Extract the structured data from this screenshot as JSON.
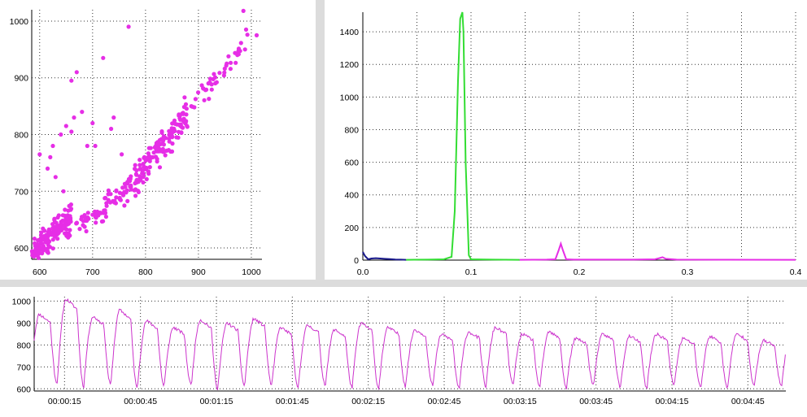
{
  "chart_data": [
    {
      "type": "scatter",
      "color": "#e62ee6",
      "xlim": [
        585,
        1020
      ],
      "ylim": [
        580,
        1020
      ],
      "xticks": [
        600,
        700,
        800,
        900,
        1000
      ],
      "yticks": [
        600,
        700,
        800,
        900,
        1000
      ],
      "grid": true,
      "clusters": [
        {
          "x_from": 585,
          "x_to": 660,
          "y_center_start": 590,
          "slope": 0.9,
          "spread": 22,
          "count": 150
        },
        {
          "x_from": 650,
          "x_to": 760,
          "y_center_start": 620,
          "slope": 0.75,
          "spread": 20,
          "count": 70
        },
        {
          "x_from": 760,
          "x_to": 880,
          "y_center_start": 700,
          "slope": 1.15,
          "spread": 28,
          "count": 160
        },
        {
          "x_from": 870,
          "x_to": 1000,
          "y_center_start": 830,
          "slope": 1.1,
          "spread": 18,
          "count": 45
        }
      ],
      "points": [
        [
          620,
          760
        ],
        [
          625,
          780
        ],
        [
          640,
          800
        ],
        [
          650,
          815
        ],
        [
          660,
          805
        ],
        [
          665,
          830
        ],
        [
          670,
          910
        ],
        [
          660,
          895
        ],
        [
          700,
          820
        ],
        [
          720,
          935
        ],
        [
          768,
          990
        ],
        [
          985,
          1018
        ],
        [
          990,
          985
        ],
        [
          1010,
          975
        ],
        [
          680,
          840
        ],
        [
          690,
          780
        ],
        [
          705,
          780
        ],
        [
          740,
          830
        ],
        [
          735,
          810
        ],
        [
          755,
          765
        ],
        [
          600,
          765
        ],
        [
          615,
          740
        ],
        [
          630,
          725
        ],
        [
          645,
          700
        ]
      ]
    },
    {
      "type": "line",
      "xlim": [
        0,
        0.4
      ],
      "ylim": [
        0,
        1520
      ],
      "xticks": [
        0.0,
        0.1,
        0.2,
        0.3,
        0.4
      ],
      "xtick_labels": [
        "0.0",
        "0.1",
        "0.2",
        "0.3",
        "0.4"
      ],
      "yticks": [
        0,
        200,
        400,
        600,
        800,
        1000,
        1200,
        1400
      ],
      "grid": true,
      "series": [
        {
          "color": "#1a1a8c",
          "x": [
            0.0,
            0.002,
            0.005,
            0.008,
            0.012,
            0.016,
            0.02,
            0.025,
            0.03,
            0.035,
            0.04
          ],
          "y": [
            50,
            25,
            5,
            10,
            12,
            10,
            8,
            6,
            4,
            3,
            2
          ]
        },
        {
          "color": "#33dd33",
          "x": [
            0.04,
            0.06,
            0.075,
            0.082,
            0.085,
            0.088,
            0.09,
            0.092,
            0.093,
            0.095,
            0.098,
            0.1,
            0.12,
            0.145
          ],
          "y": [
            2,
            3,
            5,
            20,
            300,
            1100,
            1480,
            1520,
            1400,
            600,
            30,
            5,
            3,
            2
          ]
        },
        {
          "color": "#e62ee6",
          "x": [
            0.145,
            0.17,
            0.178,
            0.181,
            0.183,
            0.185,
            0.188,
            0.195,
            0.25,
            0.27,
            0.274,
            0.277,
            0.28,
            0.29,
            0.4
          ],
          "y": [
            2,
            3,
            5,
            60,
            100,
            60,
            5,
            3,
            3,
            5,
            12,
            18,
            8,
            3,
            2
          ]
        }
      ]
    },
    {
      "type": "line",
      "color": "#cc33cc",
      "ylim": [
        590,
        1020
      ],
      "yticks": [
        600,
        700,
        800,
        900,
        1000
      ],
      "x_start_seconds": 3,
      "x_end_seconds": 300,
      "cycle_seconds": 10.6,
      "xtick_labels": [
        "00:00:15",
        "00:00:45",
        "00:01:15",
        "00:01:45",
        "00:02:15",
        "00:02:45",
        "00:03:15",
        "00:03:45",
        "00:04:15",
        "00:04:45"
      ],
      "peaks": [
        940,
        1010,
        930,
        960,
        910,
        880,
        915,
        900,
        920,
        880,
        890,
        870,
        900,
        880,
        870,
        850,
        860,
        880,
        850,
        860,
        830,
        850,
        840,
        850,
        830,
        840,
        850,
        820,
        840,
        800,
        810,
        820
      ],
      "troughs": [
        630,
        610,
        620,
        600,
        610,
        620,
        600,
        610,
        620,
        600,
        620,
        610,
        600,
        610,
        620,
        600,
        610,
        620,
        610,
        600,
        620,
        610,
        600,
        620,
        610,
        600,
        610,
        620,
        600,
        610,
        590,
        600
      ]
    }
  ]
}
